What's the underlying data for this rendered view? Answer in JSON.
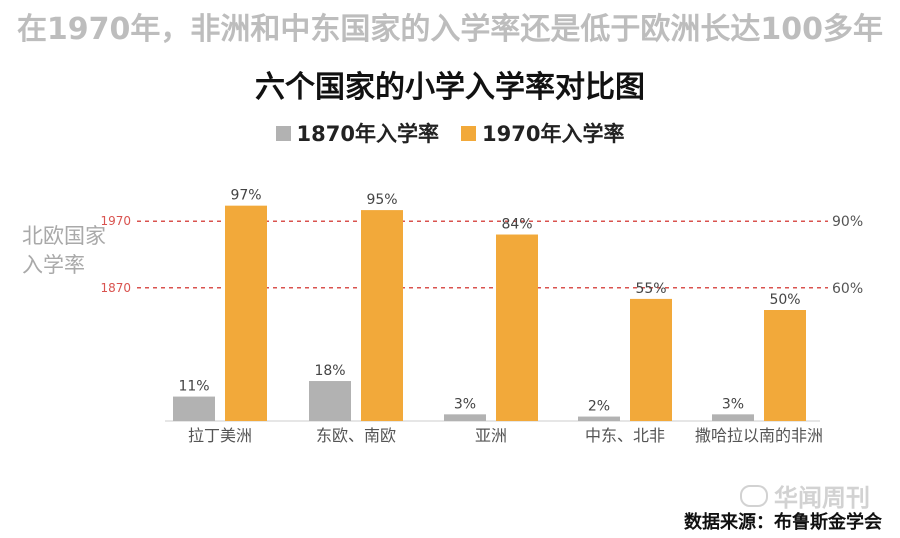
{
  "headline": "在1970年，非洲和中东国家的入学率还是低于欧洲长达100多年",
  "watermark": "华闻周刊",
  "source": "数据来源：布鲁斯金学会",
  "colors": {
    "series_1870": "#b2b2b2",
    "series_1970": "#f2a93a",
    "reference_line": "#d9534f"
  },
  "chart_data": {
    "type": "bar",
    "title": "六个国家的小学入学率对比图",
    "categories": [
      "拉丁美洲",
      "东欧、南欧",
      "亚洲",
      "中东、北非",
      "撒哈拉以南的非洲"
    ],
    "series": [
      {
        "name": "1870年入学率",
        "values": [
          11,
          18,
          3,
          2,
          3
        ],
        "labels": [
          "11%",
          "18%",
          "3%",
          "2%",
          "3%"
        ]
      },
      {
        "name": "1970年入学率",
        "values": [
          97,
          95,
          84,
          55,
          50
        ],
        "labels": [
          "97%",
          "95%",
          "84%",
          "55%",
          "50%"
        ]
      }
    ],
    "reference_label": "北欧国家入学率",
    "reference_lines": [
      {
        "left_label": "1970",
        "right_label": "90%",
        "value": 90
      },
      {
        "left_label": "1870",
        "right_label": "60%",
        "value": 60
      }
    ],
    "ylim": [
      0,
      100
    ],
    "grid": false,
    "legend_position": "top-center"
  }
}
